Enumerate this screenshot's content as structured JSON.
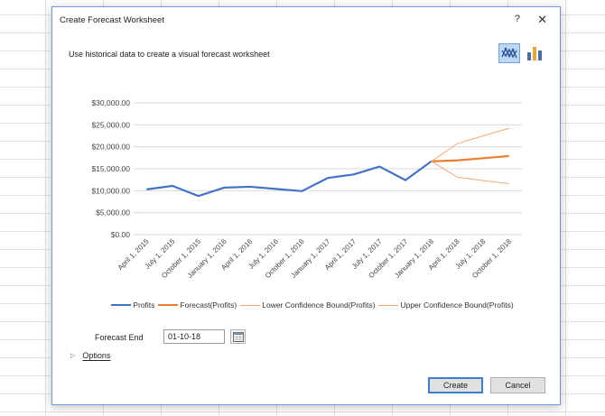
{
  "dialog": {
    "title": "Create Forecast Worksheet",
    "help_glyph": "?",
    "close_glyph": "✕",
    "intro_text": "Use historical data to create a visual forecast worksheet",
    "chart_types": [
      "line-chart-icon",
      "column-chart-icon"
    ],
    "selected_chart_type": "line"
  },
  "chart_data": {
    "type": "line",
    "x": [
      "April 1, 2015",
      "July 1, 2015",
      "October 1, 2015",
      "January 1, 2016",
      "April 1, 2016",
      "July 1, 2016",
      "October 1, 2016",
      "January 1, 2017",
      "April 1, 2017",
      "July 1, 2017",
      "October 1, 2017",
      "January 1, 2018",
      "April 1, 2018",
      "July 1, 2018",
      "October 1, 2018"
    ],
    "y_ticks": [
      "$0.00",
      "$5,000.00",
      "$10,000.00",
      "$15,000.00",
      "$20,000.00",
      "$25,000.00",
      "$30,000.00"
    ],
    "ylim": [
      0,
      30000
    ],
    "grid": true,
    "legend_position": "bottom",
    "series": [
      {
        "name": "Profits",
        "color": "#4472c4",
        "values": [
          10300,
          11100,
          8800,
          10700,
          10900,
          10400,
          9900,
          12900,
          13700,
          15500,
          12400,
          16700,
          null,
          null,
          null
        ]
      },
      {
        "name": "Forecast(Profits)",
        "color": "#ed7d31",
        "values": [
          null,
          null,
          null,
          null,
          null,
          null,
          null,
          null,
          null,
          null,
          null,
          16700,
          16900,
          17400,
          17900
        ]
      },
      {
        "name": "Lower Confidence Bound(Profits)",
        "color": "#f4a672",
        "values": [
          null,
          null,
          null,
          null,
          null,
          null,
          null,
          null,
          null,
          null,
          null,
          16700,
          13100,
          12300,
          11600
        ]
      },
      {
        "name": "Upper Confidence Bound(Profits)",
        "color": "#f4a672",
        "values": [
          null,
          null,
          null,
          null,
          null,
          null,
          null,
          null,
          null,
          null,
          null,
          16700,
          20700,
          22500,
          24200
        ]
      }
    ]
  },
  "form": {
    "forecast_end_label": "Forecast End",
    "forecast_end_value": "01-10-18",
    "options_label": "Options"
  },
  "buttons": {
    "create": "Create",
    "cancel": "Cancel"
  }
}
